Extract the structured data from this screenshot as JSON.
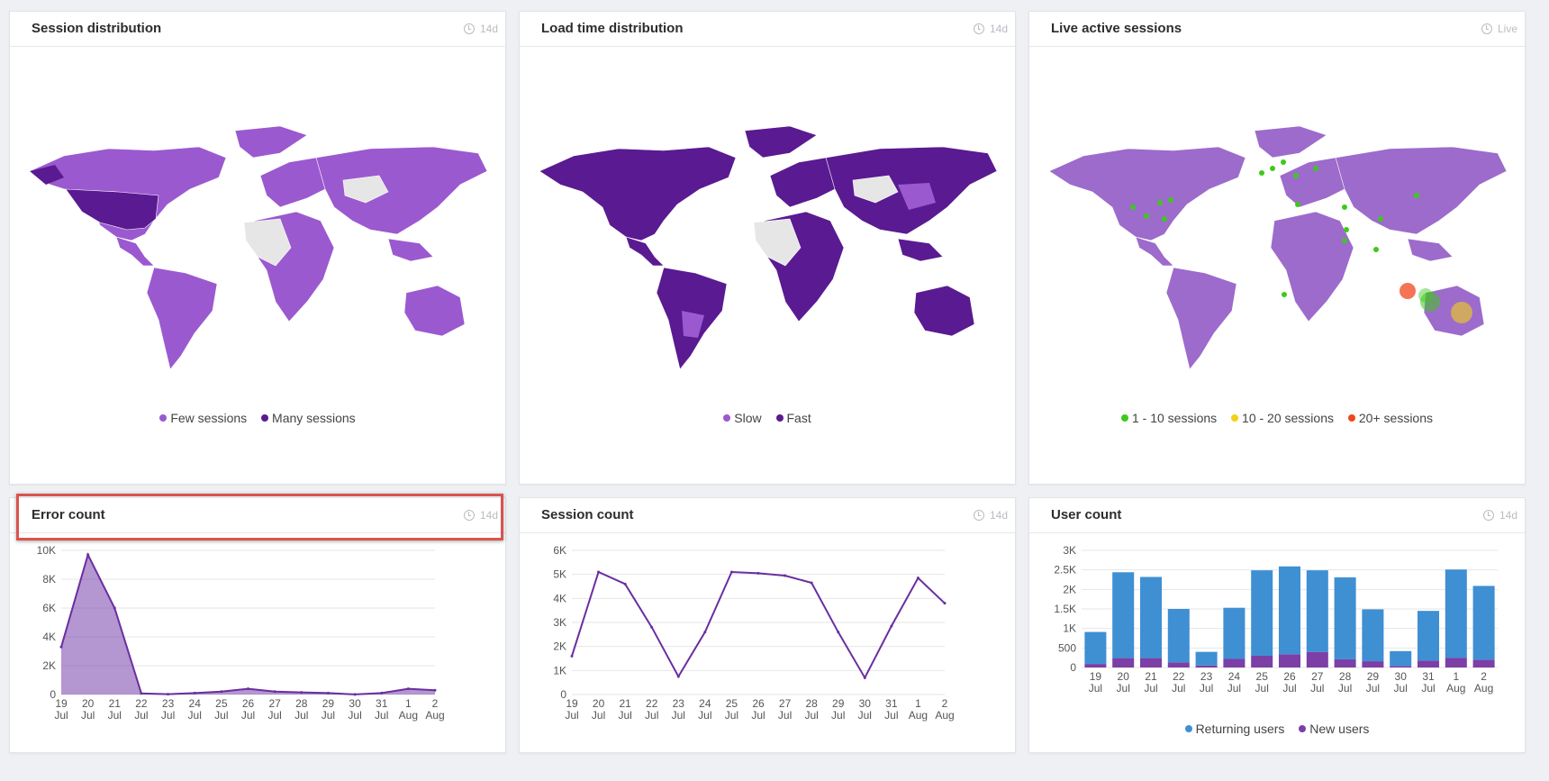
{
  "panels": {
    "session_distribution": {
      "title": "Session distribution",
      "range": "14d",
      "legend": [
        {
          "label": "Few sessions",
          "color": "#9b59d0"
        },
        {
          "label": "Many sessions",
          "color": "#5a1a91"
        }
      ]
    },
    "load_time_distribution": {
      "title": "Load time distribution",
      "range": "14d",
      "legend": [
        {
          "label": "Slow",
          "color": "#9b59d0"
        },
        {
          "label": "Fast",
          "color": "#5a1a91"
        }
      ]
    },
    "live_active_sessions": {
      "title": "Live active sessions",
      "range": "Live",
      "legend": [
        {
          "label": "1 - 10 sessions",
          "color": "#3fc81c"
        },
        {
          "label": "10 - 20 sessions",
          "color": "#f4d118"
        },
        {
          "label": "20+ sessions",
          "color": "#f0461c"
        }
      ]
    },
    "error_count": {
      "title": "Error count",
      "range": "14d"
    },
    "session_count": {
      "title": "Session count",
      "range": "14d"
    },
    "user_count": {
      "title": "User count",
      "range": "14d",
      "legend": [
        {
          "label": "Returning users",
          "color": "#3f8fd3"
        },
        {
          "label": "New users",
          "color": "#7b3fa6"
        }
      ]
    }
  },
  "colors": {
    "accent": "#6a2ea1",
    "returning": "#3f8fd3",
    "new_users": "#7b3fa6",
    "highlight": "#d9534f"
  },
  "chart_data": [
    {
      "type": "area",
      "name": "error_count",
      "categories": [
        [
          "19",
          "Jul"
        ],
        [
          "20",
          "Jul"
        ],
        [
          "21",
          "Jul"
        ],
        [
          "22",
          "Jul"
        ],
        [
          "23",
          "Jul"
        ],
        [
          "24",
          "Jul"
        ],
        [
          "25",
          "Jul"
        ],
        [
          "26",
          "Jul"
        ],
        [
          "27",
          "Jul"
        ],
        [
          "28",
          "Jul"
        ],
        [
          "29",
          "Jul"
        ],
        [
          "30",
          "Jul"
        ],
        [
          "31",
          "Jul"
        ],
        [
          "1",
          "Aug"
        ],
        [
          "2",
          "Aug"
        ]
      ],
      "values": [
        3300,
        9700,
        6000,
        80,
        20,
        100,
        200,
        400,
        200,
        150,
        100,
        10,
        100,
        400,
        300
      ],
      "ylim": [
        0,
        10000
      ],
      "yticks": [
        "0",
        "2K",
        "4K",
        "6K",
        "8K",
        "10K"
      ],
      "ytick_values": [
        0,
        2000,
        4000,
        6000,
        8000,
        10000
      ]
    },
    {
      "type": "line",
      "name": "session_count",
      "categories": [
        [
          "19",
          "Jul"
        ],
        [
          "20",
          "Jul"
        ],
        [
          "21",
          "Jul"
        ],
        [
          "22",
          "Jul"
        ],
        [
          "23",
          "Jul"
        ],
        [
          "24",
          "Jul"
        ],
        [
          "25",
          "Jul"
        ],
        [
          "26",
          "Jul"
        ],
        [
          "27",
          "Jul"
        ],
        [
          "28",
          "Jul"
        ],
        [
          "29",
          "Jul"
        ],
        [
          "30",
          "Jul"
        ],
        [
          "31",
          "Jul"
        ],
        [
          "1",
          "Aug"
        ],
        [
          "2",
          "Aug"
        ]
      ],
      "values": [
        1600,
        5100,
        4600,
        2800,
        750,
        2600,
        5100,
        5050,
        4950,
        4650,
        2600,
        700,
        2850,
        4850,
        3800
      ],
      "ylim": [
        0,
        6000
      ],
      "yticks": [
        "0",
        "1K",
        "2K",
        "3K",
        "4K",
        "5K",
        "6K"
      ],
      "ytick_values": [
        0,
        1000,
        2000,
        3000,
        4000,
        5000,
        6000
      ]
    },
    {
      "type": "bar",
      "stacked": true,
      "name": "user_count",
      "categories": [
        [
          "19",
          "Jul"
        ],
        [
          "20",
          "Jul"
        ],
        [
          "21",
          "Jul"
        ],
        [
          "22",
          "Jul"
        ],
        [
          "23",
          "Jul"
        ],
        [
          "24",
          "Jul"
        ],
        [
          "25",
          "Jul"
        ],
        [
          "26",
          "Jul"
        ],
        [
          "27",
          "Jul"
        ],
        [
          "28",
          "Jul"
        ],
        [
          "29",
          "Jul"
        ],
        [
          "30",
          "Jul"
        ],
        [
          "31",
          "Jul"
        ],
        [
          "1",
          "Aug"
        ],
        [
          "2",
          "Aug"
        ]
      ],
      "series": [
        {
          "name": "New users",
          "values": [
            90,
            240,
            240,
            130,
            50,
            220,
            300,
            340,
            400,
            210,
            160,
            40,
            180,
            250,
            200
          ]
        },
        {
          "name": "Returning users",
          "values": [
            820,
            2200,
            2080,
            1370,
            350,
            1310,
            2190,
            2250,
            2090,
            2100,
            1330,
            380,
            1270,
            2260,
            1890
          ]
        }
      ],
      "ylim": [
        0,
        3000
      ],
      "yticks": [
        "0",
        "500",
        "1K",
        "1.5K",
        "2K",
        "2.5K",
        "3K"
      ],
      "ytick_values": [
        0,
        500,
        1000,
        1500,
        2000,
        2500,
        3000
      ]
    }
  ]
}
